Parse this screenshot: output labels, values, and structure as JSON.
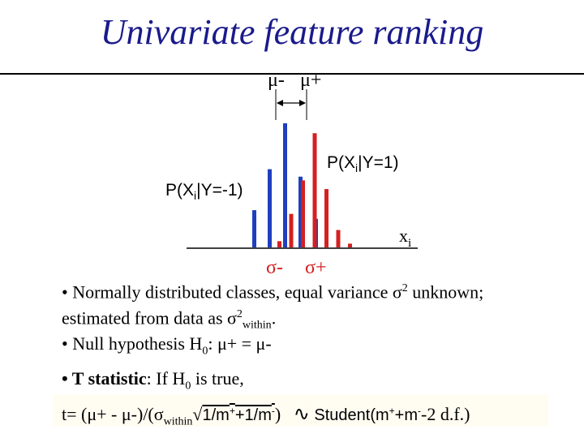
{
  "title": "Univariate feature ranking",
  "figure": {
    "mu_minus": "μ-",
    "mu_plus": "μ+",
    "p_pos_label": "P(X",
    "p_pos_sub": "i",
    "p_pos_tail": "|Y=1)",
    "p_neg_label": "P(X",
    "p_neg_sub": "i",
    "p_neg_tail": "|Y=-1)",
    "x_label": "x",
    "x_sub": "i",
    "sigma_minus": "σ-",
    "sigma_plus": "σ+",
    "colors": {
      "negative": "#1f3fbf",
      "positive": "#d42020"
    },
    "negative_class_bars": [
      0.3,
      0.63,
      1.0,
      0.57,
      0.23
    ],
    "positive_class_bars": [
      0.05,
      0.27,
      0.54,
      0.92,
      0.47,
      0.14,
      0.03
    ]
  },
  "bullets": {
    "b1_line1_a": "• Normally distributed classes, equal variance ",
    "b1_sigma": "σ",
    "b1_sup": "2",
    "b1_line1_b": " unknown;",
    "b1_line2_a": "estimated from data as ",
    "b1_sigma2": "σ",
    "b1_sup2": "2",
    "b1_sub2": "within",
    "b1_line2_b": ".",
    "b2_a": "• Null hypothesis H",
    "b2_sub": "0",
    "b2_b": ": μ+ = μ-",
    "b3_bold": "• T statistic",
    "b3_a": ": If H",
    "b3_sub": "0",
    "b3_b": " is true,"
  },
  "formula": {
    "lhs": "t= (μ+ - μ-)/(σ",
    "within": "within",
    "sqrt": "√",
    "under_a": "1/m",
    "under_sup1": "+",
    "under_b": "+1/m",
    "under_sup2": "-",
    "close": ")",
    "tilde": "∿",
    "student": " Student(m",
    "st_sup1": "+",
    "st_mid": "+m",
    "st_sup2": "-",
    "st_tail": "-2 d.f.)"
  }
}
